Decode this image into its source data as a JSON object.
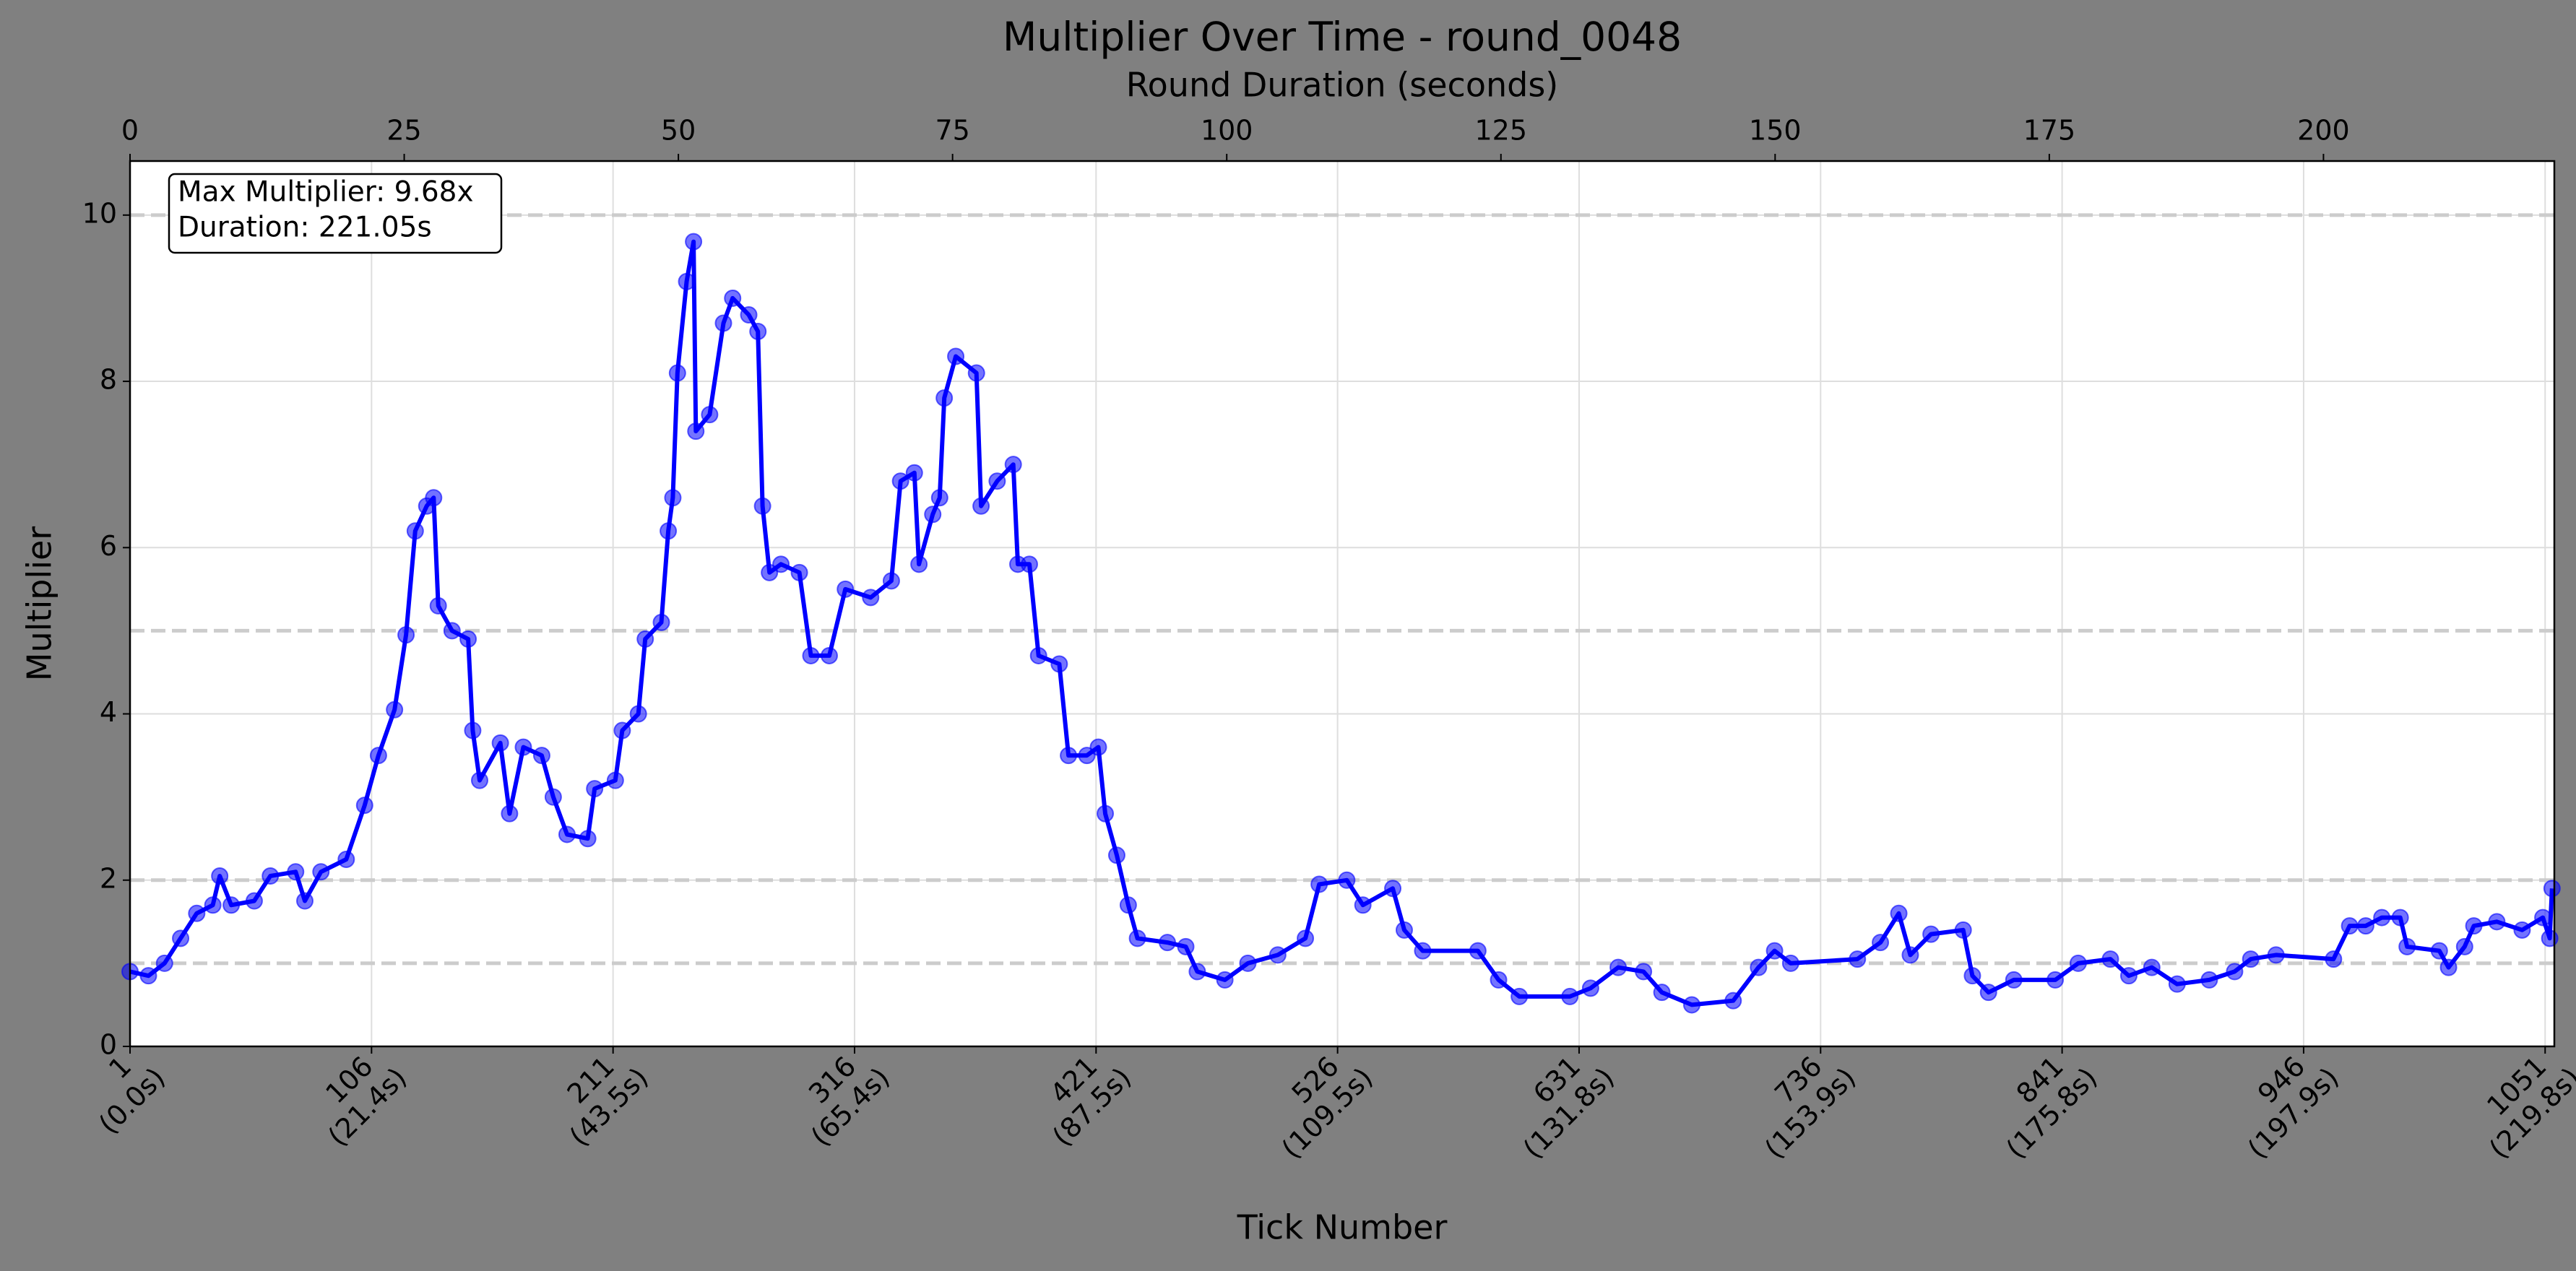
{
  "chart_data": {
    "type": "line",
    "title": "Multiplier Over Time - round_0048",
    "xlabel": "Tick Number",
    "ylabel": "Multiplier",
    "x2label": "Round Duration (seconds)",
    "annotation": [
      "Max Multiplier: 9.68x",
      "Duration: 221.05s"
    ],
    "xlim": [
      1,
      1055
    ],
    "ylim": [
      0,
      10.65
    ],
    "x2lim": [
      0,
      221.05
    ],
    "grid": true,
    "reference_lines": [
      1,
      2,
      5,
      10
    ],
    "xticks": [
      {
        "value": 1,
        "label": "1",
        "time_label": "(0.0s)"
      },
      {
        "value": 106,
        "label": "106",
        "time_label": "(21.4s)"
      },
      {
        "value": 211,
        "label": "211",
        "time_label": "(43.5s)"
      },
      {
        "value": 316,
        "label": "316",
        "time_label": "(65.4s)"
      },
      {
        "value": 421,
        "label": "421",
        "time_label": "(87.5s)"
      },
      {
        "value": 526,
        "label": "526",
        "time_label": "(109.5s)"
      },
      {
        "value": 631,
        "label": "631",
        "time_label": "(131.8s)"
      },
      {
        "value": 736,
        "label": "736",
        "time_label": "(153.9s)"
      },
      {
        "value": 841,
        "label": "841",
        "time_label": "(175.8s)"
      },
      {
        "value": 946,
        "label": "946",
        "time_label": "(197.9s)"
      },
      {
        "value": 1051,
        "label": "1051",
        "time_label": "(219.8s)"
      }
    ],
    "yticks": [
      0,
      2,
      4,
      6,
      8,
      10
    ],
    "x2ticks": [
      0,
      25,
      50,
      75,
      100,
      125,
      150,
      175,
      200
    ],
    "x": [
      1,
      9,
      16,
      23,
      30,
      37,
      40,
      45,
      55,
      62,
      73,
      77,
      84,
      95,
      103,
      109,
      116,
      121,
      125,
      130,
      133,
      135,
      141,
      148,
      150,
      153,
      162,
      166,
      172,
      180,
      185,
      191,
      200,
      203,
      212,
      215,
      222,
      225,
      232,
      235,
      237,
      239,
      243,
      246,
      247,
      253,
      259,
      263,
      270,
      274,
      276,
      279,
      284,
      292,
      297,
      305,
      312,
      323,
      332,
      336,
      342,
      344,
      350,
      353,
      355,
      360,
      369,
      371,
      378,
      385,
      387,
      392,
      396,
      405,
      409,
      417,
      422,
      425,
      430,
      435,
      439,
      452,
      460,
      465,
      477,
      487,
      500,
      512,
      518,
      530,
      537,
      550,
      555,
      563,
      587,
      596,
      605,
      627,
      636,
      648,
      659,
      667,
      680,
      698,
      709,
      716,
      723,
      752,
      762,
      770,
      775,
      784,
      798,
      802,
      809,
      820,
      838,
      848,
      862,
      870,
      880,
      891,
      905,
      916,
      923,
      934,
      959,
      966,
      973,
      980,
      988,
      991,
      1005,
      1009,
      1016,
      1020,
      1030,
      1041,
      1050,
      1053,
      1054
    ],
    "series": [
      {
        "name": "Multiplier",
        "color": "#0000ff",
        "values": [
          0.9,
          0.85,
          1.0,
          1.3,
          1.6,
          1.7,
          2.05,
          1.7,
          1.75,
          2.05,
          2.1,
          1.75,
          2.1,
          2.25,
          2.9,
          3.5,
          4.05,
          4.95,
          6.2,
          6.5,
          6.6,
          5.3,
          5.0,
          4.9,
          3.8,
          3.2,
          3.65,
          2.8,
          3.6,
          3.5,
          3.0,
          2.55,
          2.5,
          3.1,
          3.2,
          3.8,
          4.0,
          4.9,
          5.1,
          6.2,
          6.6,
          8.1,
          9.2,
          9.68,
          7.4,
          7.6,
          8.7,
          9.0,
          8.8,
          8.6,
          6.5,
          5.7,
          5.8,
          5.7,
          4.7,
          4.7,
          5.5,
          5.4,
          5.6,
          6.8,
          6.9,
          5.8,
          6.4,
          6.6,
          7.8,
          8.3,
          8.1,
          6.5,
          6.8,
          7.0,
          5.8,
          5.8,
          4.7,
          4.6,
          3.5,
          3.5,
          3.6,
          2.8,
          2.3,
          1.7,
          1.3,
          1.25,
          1.2,
          0.9,
          0.8,
          1.0,
          1.1,
          1.3,
          1.95,
          2.0,
          1.7,
          1.9,
          1.4,
          1.15,
          1.15,
          0.8,
          0.6,
          0.6,
          0.7,
          0.95,
          0.9,
          0.65,
          0.5,
          0.55,
          0.95,
          1.15,
          1.0,
          1.05,
          1.25,
          1.6,
          1.1,
          1.35,
          1.4,
          0.85,
          0.65,
          0.8,
          0.8,
          1.0,
          1.05,
          0.85,
          0.95,
          0.75,
          0.8,
          0.9,
          1.05,
          1.1,
          1.05,
          1.45,
          1.45,
          1.55,
          1.55,
          1.2,
          1.15,
          0.95,
          1.2,
          1.45,
          1.5,
          1.4,
          1.55,
          1.3,
          1.9
        ]
      }
    ]
  }
}
